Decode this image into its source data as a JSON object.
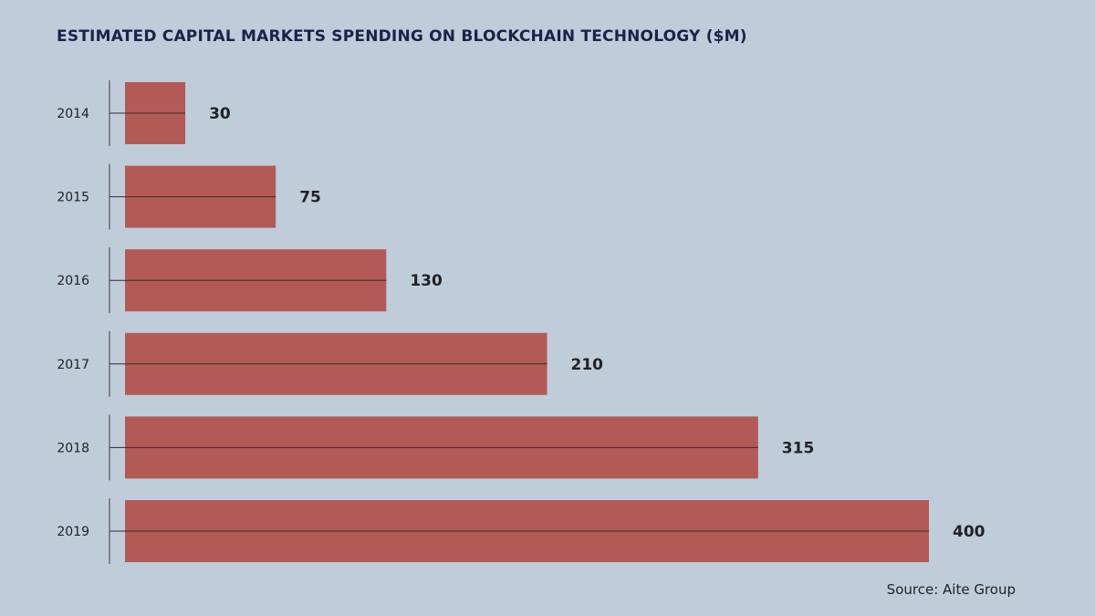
{
  "colors": {
    "background": "#bfcddb",
    "bar": "#b35a56",
    "title": "#1b2248",
    "text": "#222222",
    "axis": "#555555"
  },
  "chart_data": {
    "type": "bar",
    "orientation": "horizontal",
    "title": "ESTIMATED CAPITAL MARKETS SPENDING ON BLOCKCHAIN TECHNOLOGY ($M)",
    "source": "Source: Aite Group",
    "categories": [
      "2014",
      "2015",
      "2016",
      "2017",
      "2018",
      "2019"
    ],
    "values": [
      30,
      75,
      130,
      210,
      315,
      400
    ],
    "data_labels": [
      "30",
      "75",
      "130",
      "210",
      "315",
      "400"
    ],
    "xlim": [
      0,
      400
    ],
    "grid": false,
    "legend": "none"
  }
}
